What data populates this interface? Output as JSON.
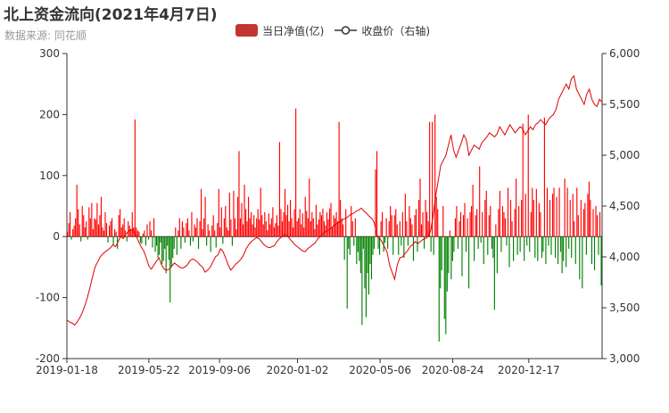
{
  "title": "北上资金流向(2021年4月7日)",
  "subtitle": "数据来源: 同花顺",
  "legend": {
    "bar_label": "当日净值(亿)",
    "line_label": "收盘价（右轴)"
  },
  "colors": {
    "positive": "#ff0000",
    "negative": "#008000",
    "line": "#e00000",
    "legend_bar": "#c23531",
    "axis": "#333333"
  },
  "chart_data": {
    "type": "bar",
    "x_tick_labels": [
      "2019-01-18",
      "2019-05-22",
      "2019-09-06",
      "2020-01-02",
      "2020-05-06",
      "2020-08-24",
      "2020-12-17"
    ],
    "x_start": "2019-01-18",
    "x_end": "2021-04-07",
    "left_axis": {
      "min": -200,
      "max": 300,
      "ticks": [
        -200,
        -100,
        0,
        100,
        200,
        300
      ]
    },
    "right_axis": {
      "min": 3000,
      "max": 6000,
      "ticks": [
        "3,000",
        "3,500",
        "4,000",
        "4,500",
        "5,000",
        "5,500",
        "6,000"
      ]
    },
    "series": [
      {
        "name": "当日净值(亿)",
        "type": "bar",
        "values": [
          8,
          22,
          40,
          -5,
          12,
          18,
          30,
          85,
          45,
          20,
          -8,
          50,
          35,
          15,
          25,
          -5,
          48,
          30,
          55,
          12,
          30,
          28,
          55,
          20,
          35,
          65,
          15,
          10,
          40,
          22,
          -10,
          18,
          25,
          30,
          -15,
          12,
          8,
          -20,
          35,
          45,
          15,
          20,
          30,
          10,
          -8,
          25,
          18,
          12,
          40,
          15,
          192,
          15,
          10,
          8,
          -10,
          -12,
          5,
          10,
          -15,
          20,
          -5,
          25,
          10,
          -18,
          30,
          -25,
          -15,
          -35,
          -30,
          -10,
          -45,
          -40,
          -20,
          -60,
          -15,
          -38,
          -108,
          -50,
          -35,
          -20,
          15,
          -30,
          10,
          30,
          -20,
          25,
          15,
          -10,
          22,
          30,
          10,
          -15,
          40,
          -8,
          20,
          15,
          30,
          -20,
          25,
          78,
          12,
          30,
          65,
          -15,
          20,
          10,
          -25,
          18,
          35,
          10,
          -18,
          22,
          78,
          15,
          48,
          -12,
          30,
          50,
          15,
          10,
          72,
          28,
          -15,
          75,
          30,
          12,
          65,
          140,
          30,
          55,
          20,
          85,
          45,
          25,
          65,
          30,
          40,
          20,
          35,
          15,
          30,
          45,
          28,
          80,
          35,
          20,
          40,
          25,
          10,
          38,
          20,
          30,
          48,
          15,
          22,
          35,
          18,
          155,
          45,
          25,
          40,
          78,
          35,
          52,
          25,
          60,
          30,
          15,
          45,
          210,
          25,
          30,
          45,
          20,
          38,
          15,
          65,
          42,
          30,
          95,
          25,
          40,
          30,
          12,
          52,
          20,
          28,
          40,
          35,
          46,
          25,
          18,
          40,
          28,
          46,
          55,
          15,
          35,
          30,
          40,
          25,
          188,
          60,
          30,
          20,
          -38,
          45,
          -118,
          -20,
          -30,
          50,
          25,
          -15,
          30,
          -45,
          -25,
          -40,
          -60,
          -145,
          -20,
          -85,
          -132,
          -60,
          -95,
          -45,
          -70,
          -30,
          -20,
          110,
          140,
          -20,
          -30,
          25,
          40,
          -25,
          -10,
          30,
          -20,
          25,
          50,
          35,
          -30,
          35,
          45,
          20,
          -30,
          25,
          -15,
          40,
          -35,
          70,
          25,
          -15,
          50,
          30,
          20,
          -40,
          35,
          45,
          -25,
          60,
          95,
          20,
          40,
          -20,
          60,
          40,
          25,
          188,
          -25,
          188,
          -30,
          200,
          65,
          45,
          -172,
          -85,
          -55,
          50,
          -135,
          -160,
          -90,
          -60,
          10,
          -70,
          -40,
          -25,
          30,
          50,
          -20,
          25,
          40,
          -65,
          35,
          55,
          -25,
          30,
          -85,
          40,
          50,
          85,
          -40,
          35,
          45,
          -20,
          115,
          -10,
          40,
          -45,
          60,
          75,
          -30,
          35,
          50,
          -20,
          -35,
          -120,
          20,
          -60,
          45,
          75,
          -25,
          50,
          40,
          30,
          -15,
          80,
          -50,
          60,
          25,
          -40,
          45,
          95,
          -30,
          50,
          -25,
          60,
          185,
          -40,
          70,
          -15,
          200,
          -25,
          40,
          80,
          60,
          -35,
          78,
          -40,
          55,
          40,
          -35,
          -25,
          195,
          -45,
          80,
          -15,
          60,
          -30,
          70,
          80,
          -35,
          65,
          -45,
          80,
          -25,
          -60,
          -40,
          95,
          -50,
          80,
          -20,
          60,
          -35,
          70,
          25,
          -45,
          80,
          35,
          -70,
          60,
          -85,
          45,
          55,
          -30,
          70,
          90,
          60,
          -45,
          45,
          -55,
          50,
          35,
          -30,
          40,
          -80
        ],
        "color": "#ff0000"
      },
      {
        "name": "收盘价（右轴)",
        "type": "line",
        "values": [
          3380,
          3360,
          3350,
          3330,
          3360,
          3400,
          3450,
          3520,
          3600,
          3700,
          3800,
          3900,
          3950,
          4000,
          4030,
          4050,
          4070,
          4090,
          4120,
          4100,
          4150,
          4200,
          4180,
          4220,
          4250,
          4270,
          4260,
          4210,
          4150,
          4100,
          4060,
          3990,
          3910,
          3880,
          3920,
          3960,
          3990,
          3920,
          3880,
          3870,
          3880,
          3910,
          3940,
          3920,
          3900,
          3890,
          3900,
          3920,
          3960,
          3980,
          3970,
          3950,
          3920,
          3900,
          3850,
          3870,
          3900,
          3950,
          4000,
          4020,
          4080,
          4050,
          3990,
          3920,
          3870,
          3900,
          3930,
          3950,
          3980,
          4020,
          4080,
          4120,
          4150,
          4170,
          4190,
          4180,
          4150,
          4120,
          4100,
          4090,
          4100,
          4110,
          4150,
          4180,
          4200,
          4220,
          4210,
          4180,
          4150,
          4120,
          4100,
          4080,
          4060,
          4050,
          4080,
          4100,
          4120,
          4140,
          4180,
          4200,
          4230,
          4250,
          4260,
          4280,
          4300,
          4320,
          4340,
          4350,
          4370,
          4380,
          4400,
          4420,
          4430,
          4450,
          4460,
          4480,
          4450,
          4430,
          4400,
          4380,
          4340,
          4220,
          4190,
          4150,
          4100,
          4050,
          3920,
          3850,
          3780,
          3920,
          3990,
          4000,
          4030,
          4060,
          4100,
          4120,
          4150,
          4130,
          4150,
          4170,
          4180,
          4200,
          4250,
          4400,
          4600,
          4750,
          4900,
          4950,
          5000,
          5100,
          5200,
          5050,
          4980,
          5050,
          5120,
          5200,
          5150,
          5000,
          5050,
          5100,
          5080,
          5060,
          5120,
          5150,
          5180,
          5220,
          5200,
          5180,
          5210,
          5280,
          5240,
          5200,
          5250,
          5300,
          5260,
          5220,
          5250,
          5280,
          5260,
          5200,
          5240,
          5280,
          5250,
          5300,
          5320,
          5350,
          5320,
          5300,
          5350,
          5380,
          5400,
          5450,
          5550,
          5600,
          5650,
          5700,
          5650,
          5750,
          5780,
          5650,
          5600,
          5550,
          5500,
          5600,
          5650,
          5550,
          5500,
          5480,
          5550,
          5520
        ],
        "color": "#e00000"
      }
    ]
  }
}
